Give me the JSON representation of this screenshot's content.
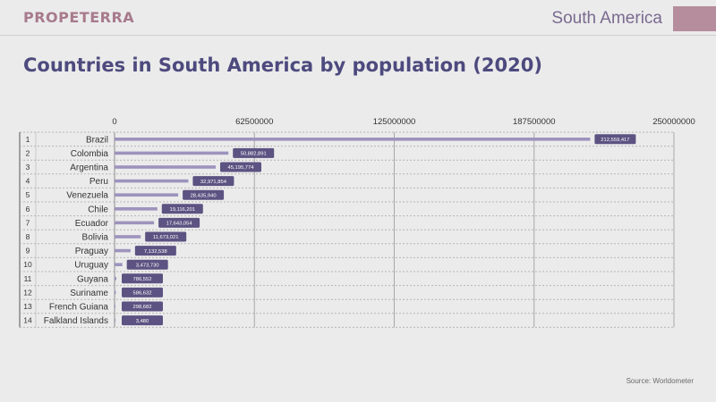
{
  "header": {
    "brand": "PROPETERRA",
    "region": "South America",
    "title": "Countries in South America by population (2020)",
    "source": "Source: Worldometer"
  },
  "colors": {
    "bar": "#9d93bd",
    "label_box": "#5c5382",
    "label_text": "#ffffff",
    "title": "#4d4a7e",
    "brand": "#a77a8c",
    "accent_block": "#b68d9c",
    "grid": "#a8a8a8",
    "row_separator": "#b5b5b5",
    "text": "#333333"
  },
  "chart_data": {
    "type": "bar",
    "orientation": "horizontal",
    "title": "Countries in South America by population (2020)",
    "xlim": [
      0,
      250000000
    ],
    "tick_labels": [
      "0",
      "62500000",
      "125000000",
      "187500000",
      "250000000"
    ],
    "categories": [
      {
        "rank": "1",
        "name": "Brazil",
        "value": 212559417,
        "label": "212,559,417"
      },
      {
        "rank": "2",
        "name": "Colombia",
        "value": 50882891,
        "label": "50,882,891"
      },
      {
        "rank": "3",
        "name": "Argentina",
        "value": 45195774,
        "label": "45,195,774"
      },
      {
        "rank": "4",
        "name": "Peru",
        "value": 32971854,
        "label": "32,971,854"
      },
      {
        "rank": "5",
        "name": "Venezuela",
        "value": 28435940,
        "label": "28,435,940"
      },
      {
        "rank": "6",
        "name": "Chile",
        "value": 19116201,
        "label": "19,116,201"
      },
      {
        "rank": "7",
        "name": "Ecuador",
        "value": 17643054,
        "label": "17,643,054"
      },
      {
        "rank": "8",
        "name": "Bolivia",
        "value": 11673021,
        "label": "11,673,021"
      },
      {
        "rank": "9",
        "name": "Praguay",
        "value": 7132538,
        "label": "7,132,538"
      },
      {
        "rank": "10",
        "name": "Uruguay",
        "value": 3473730,
        "label": "3,473,730"
      },
      {
        "rank": "11",
        "name": "Guyana",
        "value": 786552,
        "label": "786,552"
      },
      {
        "rank": "12",
        "name": "Suriname",
        "value": 586632,
        "label": "586,632"
      },
      {
        "rank": "13",
        "name": "French Guiana",
        "value": 298682,
        "label": "298,682"
      },
      {
        "rank": "14",
        "name": "Falkland Islands",
        "value": 3480,
        "label": "3,480"
      }
    ]
  }
}
